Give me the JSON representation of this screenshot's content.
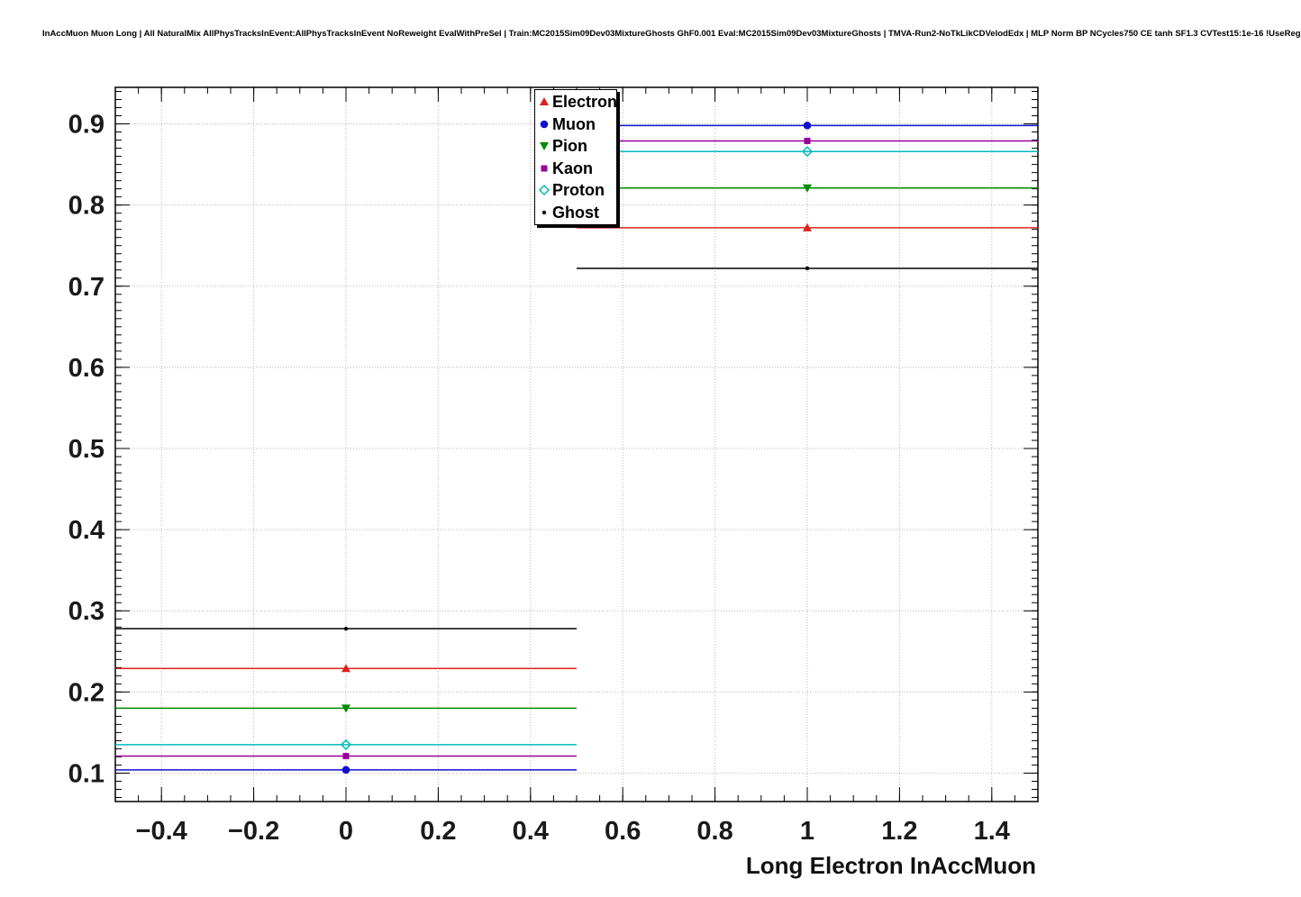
{
  "chart_data": {
    "type": "scatter",
    "title": "InAccMuon Muon Long | All NaturalMix AllPhysTracksInEvent:AllPhysTracksInEvent NoReweight EvalWithPreSel | Train:MC2015Sim09Dev03MixtureGhosts GhF0.001 Eval:MC2015Sim09Dev03MixtureGhosts | TMVA-Run2-NoTkLikCDVelodEdx | MLP Norm BP NCycles750 CE tanh SF1.3 CVTest15:1e-16 !UseReg",
    "xlabel": "Long Electron InAccMuon",
    "ylabel": "",
    "xlim": [
      -0.5,
      1.5
    ],
    "ylim": [
      0.065,
      0.945
    ],
    "grid": true,
    "grid_color": "#b9b9b9",
    "frame_color": "#000000",
    "x_major_ticks": [
      -0.4,
      -0.2,
      0,
      0.2,
      0.4,
      0.6,
      0.8,
      1,
      1.2,
      1.4
    ],
    "x_tick_labels": [
      "−0.4",
      "−0.2",
      "0",
      "0.2",
      "0.4",
      "0.6",
      "0.8",
      "1",
      "1.2",
      "1.4"
    ],
    "y_major_ticks": [
      0.1,
      0.2,
      0.3,
      0.4,
      0.5,
      0.6,
      0.7,
      0.8,
      0.9
    ],
    "y_tick_labels": [
      "0.1",
      "0.2",
      "0.3",
      "0.4",
      "0.5",
      "0.6",
      "0.7",
      "0.8",
      "0.9"
    ],
    "x_minor_step": 0.05,
    "y_minor_step": 0.01,
    "legend_position": "top-center",
    "series": [
      {
        "name": "Electron",
        "color": "#dd2020",
        "marker": "triangle-up",
        "x": [
          0,
          1
        ],
        "xerr": [
          0.5,
          0.5
        ],
        "y": [
          0.229,
          0.772
        ]
      },
      {
        "name": "Muon",
        "color": "#1111cc",
        "marker": "circle",
        "x": [
          0,
          1
        ],
        "xerr": [
          0.5,
          0.5
        ],
        "y": [
          0.104,
          0.898
        ]
      },
      {
        "name": "Pion",
        "color": "#008a00",
        "marker": "triangle-down",
        "x": [
          0,
          1
        ],
        "xerr": [
          0.5,
          0.5
        ],
        "y": [
          0.18,
          0.821
        ]
      },
      {
        "name": "Kaon",
        "color": "#990099",
        "marker": "square",
        "x": [
          0,
          1
        ],
        "xerr": [
          0.5,
          0.5
        ],
        "y": [
          0.121,
          0.879
        ]
      },
      {
        "name": "Proton",
        "color": "#00bcbc",
        "marker": "diamond-open",
        "x": [
          0,
          1
        ],
        "xerr": [
          0.5,
          0.5
        ],
        "y": [
          0.135,
          0.866
        ]
      },
      {
        "name": "Ghost",
        "color": "#000000",
        "marker": "dot",
        "x": [
          0,
          1
        ],
        "xerr": [
          0.5,
          0.5
        ],
        "y": [
          0.278,
          0.722
        ]
      }
    ]
  }
}
